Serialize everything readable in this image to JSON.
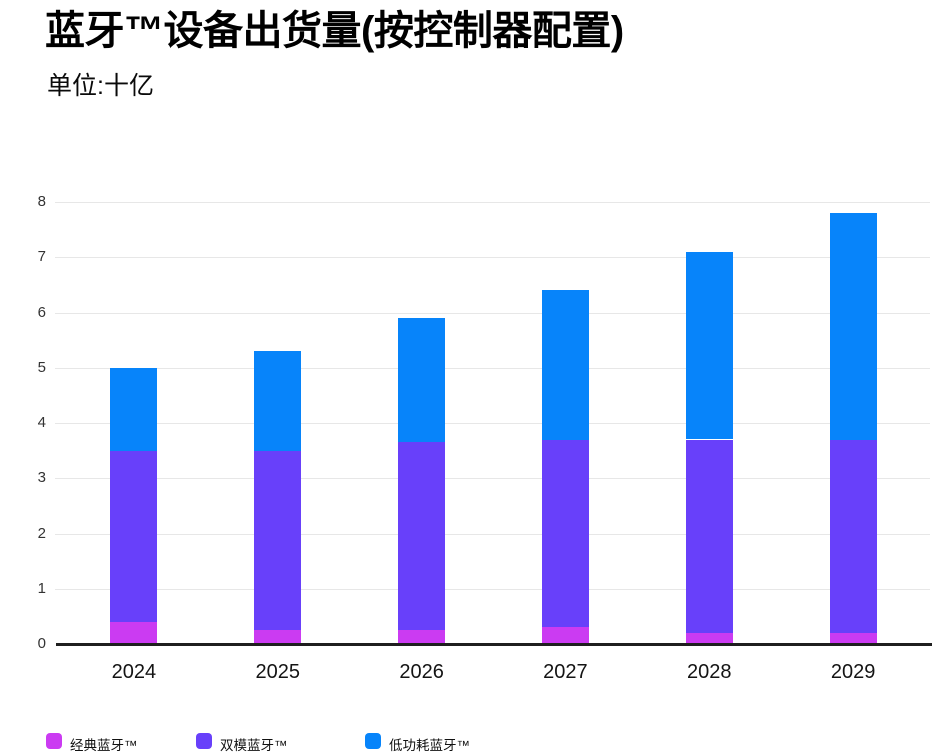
{
  "header": {
    "title": "蓝牙™设备出货量(按控制器配置)",
    "subtitle": "单位:十亿"
  },
  "chart_data": {
    "type": "bar",
    "stacked": true,
    "title": "蓝牙™设备出货量(按控制器配置)",
    "subtitle": "单位:十亿",
    "categories": [
      "2024",
      "2025",
      "2026",
      "2027",
      "2028",
      "2029"
    ],
    "series": [
      {
        "name": "经典蓝牙™",
        "color": "#cb3bf2",
        "values": [
          0.4,
          0.25,
          0.25,
          0.3,
          0.2,
          0.2
        ]
      },
      {
        "name": "双模蓝牙™",
        "color": "#6840fa",
        "values": [
          3.1,
          3.25,
          3.4,
          3.4,
          3.5,
          3.5
        ]
      },
      {
        "name": "低功耗蓝牙™",
        "color": "#0784fa",
        "values": [
          1.5,
          1.8,
          2.25,
          2.7,
          3.4,
          4.1
        ]
      }
    ],
    "totals": [
      5.0,
      5.3,
      5.9,
      6.4,
      7.1,
      7.8
    ],
    "xlabel": "",
    "ylabel": "",
    "ylim": [
      0,
      8
    ],
    "yticks": [
      0,
      1,
      2,
      3,
      4,
      5,
      6,
      7,
      8
    ],
    "grid": true,
    "legend_position": "bottom-left",
    "grid_color": "#e7e7e7",
    "axis_color": "#1f1f1f",
    "background_color": "#ffffff"
  }
}
